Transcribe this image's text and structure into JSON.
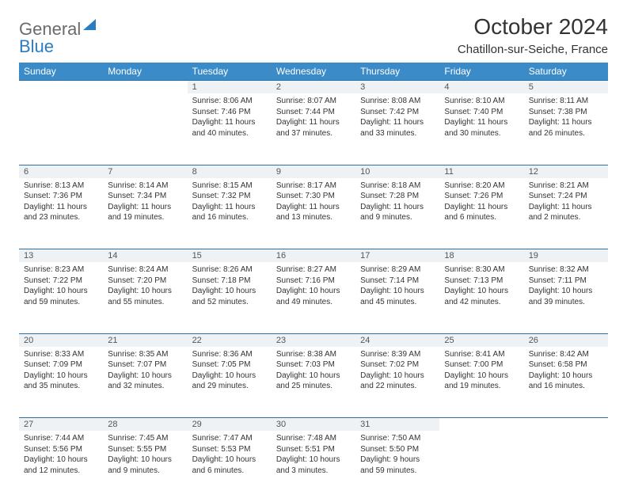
{
  "header": {
    "logo_general": "General",
    "logo_blue": "Blue",
    "month_title": "October 2024",
    "location": "Chatillon-sur-Seiche, France"
  },
  "colors": {
    "header_bg": "#3b8bc8",
    "header_text": "#ffffff",
    "daynum_bg": "#eef2f5",
    "border": "#2b6fa8",
    "logo_gray": "#6b6b6b",
    "logo_blue": "#2b7cc0",
    "body_text": "#333333"
  },
  "daynames": [
    "Sunday",
    "Monday",
    "Tuesday",
    "Wednesday",
    "Thursday",
    "Friday",
    "Saturday"
  ],
  "weeks": [
    {
      "nums": [
        "",
        "",
        "1",
        "2",
        "3",
        "4",
        "5"
      ],
      "cells": [
        {
          "sunrise": "",
          "sunset": "",
          "daylight": ""
        },
        {
          "sunrise": "",
          "sunset": "",
          "daylight": ""
        },
        {
          "sunrise": "Sunrise: 8:06 AM",
          "sunset": "Sunset: 7:46 PM",
          "daylight": "Daylight: 11 hours and 40 minutes."
        },
        {
          "sunrise": "Sunrise: 8:07 AM",
          "sunset": "Sunset: 7:44 PM",
          "daylight": "Daylight: 11 hours and 37 minutes."
        },
        {
          "sunrise": "Sunrise: 8:08 AM",
          "sunset": "Sunset: 7:42 PM",
          "daylight": "Daylight: 11 hours and 33 minutes."
        },
        {
          "sunrise": "Sunrise: 8:10 AM",
          "sunset": "Sunset: 7:40 PM",
          "daylight": "Daylight: 11 hours and 30 minutes."
        },
        {
          "sunrise": "Sunrise: 8:11 AM",
          "sunset": "Sunset: 7:38 PM",
          "daylight": "Daylight: 11 hours and 26 minutes."
        }
      ]
    },
    {
      "nums": [
        "6",
        "7",
        "8",
        "9",
        "10",
        "11",
        "12"
      ],
      "cells": [
        {
          "sunrise": "Sunrise: 8:13 AM",
          "sunset": "Sunset: 7:36 PM",
          "daylight": "Daylight: 11 hours and 23 minutes."
        },
        {
          "sunrise": "Sunrise: 8:14 AM",
          "sunset": "Sunset: 7:34 PM",
          "daylight": "Daylight: 11 hours and 19 minutes."
        },
        {
          "sunrise": "Sunrise: 8:15 AM",
          "sunset": "Sunset: 7:32 PM",
          "daylight": "Daylight: 11 hours and 16 minutes."
        },
        {
          "sunrise": "Sunrise: 8:17 AM",
          "sunset": "Sunset: 7:30 PM",
          "daylight": "Daylight: 11 hours and 13 minutes."
        },
        {
          "sunrise": "Sunrise: 8:18 AM",
          "sunset": "Sunset: 7:28 PM",
          "daylight": "Daylight: 11 hours and 9 minutes."
        },
        {
          "sunrise": "Sunrise: 8:20 AM",
          "sunset": "Sunset: 7:26 PM",
          "daylight": "Daylight: 11 hours and 6 minutes."
        },
        {
          "sunrise": "Sunrise: 8:21 AM",
          "sunset": "Sunset: 7:24 PM",
          "daylight": "Daylight: 11 hours and 2 minutes."
        }
      ]
    },
    {
      "nums": [
        "13",
        "14",
        "15",
        "16",
        "17",
        "18",
        "19"
      ],
      "cells": [
        {
          "sunrise": "Sunrise: 8:23 AM",
          "sunset": "Sunset: 7:22 PM",
          "daylight": "Daylight: 10 hours and 59 minutes."
        },
        {
          "sunrise": "Sunrise: 8:24 AM",
          "sunset": "Sunset: 7:20 PM",
          "daylight": "Daylight: 10 hours and 55 minutes."
        },
        {
          "sunrise": "Sunrise: 8:26 AM",
          "sunset": "Sunset: 7:18 PM",
          "daylight": "Daylight: 10 hours and 52 minutes."
        },
        {
          "sunrise": "Sunrise: 8:27 AM",
          "sunset": "Sunset: 7:16 PM",
          "daylight": "Daylight: 10 hours and 49 minutes."
        },
        {
          "sunrise": "Sunrise: 8:29 AM",
          "sunset": "Sunset: 7:14 PM",
          "daylight": "Daylight: 10 hours and 45 minutes."
        },
        {
          "sunrise": "Sunrise: 8:30 AM",
          "sunset": "Sunset: 7:13 PM",
          "daylight": "Daylight: 10 hours and 42 minutes."
        },
        {
          "sunrise": "Sunrise: 8:32 AM",
          "sunset": "Sunset: 7:11 PM",
          "daylight": "Daylight: 10 hours and 39 minutes."
        }
      ]
    },
    {
      "nums": [
        "20",
        "21",
        "22",
        "23",
        "24",
        "25",
        "26"
      ],
      "cells": [
        {
          "sunrise": "Sunrise: 8:33 AM",
          "sunset": "Sunset: 7:09 PM",
          "daylight": "Daylight: 10 hours and 35 minutes."
        },
        {
          "sunrise": "Sunrise: 8:35 AM",
          "sunset": "Sunset: 7:07 PM",
          "daylight": "Daylight: 10 hours and 32 minutes."
        },
        {
          "sunrise": "Sunrise: 8:36 AM",
          "sunset": "Sunset: 7:05 PM",
          "daylight": "Daylight: 10 hours and 29 minutes."
        },
        {
          "sunrise": "Sunrise: 8:38 AM",
          "sunset": "Sunset: 7:03 PM",
          "daylight": "Daylight: 10 hours and 25 minutes."
        },
        {
          "sunrise": "Sunrise: 8:39 AM",
          "sunset": "Sunset: 7:02 PM",
          "daylight": "Daylight: 10 hours and 22 minutes."
        },
        {
          "sunrise": "Sunrise: 8:41 AM",
          "sunset": "Sunset: 7:00 PM",
          "daylight": "Daylight: 10 hours and 19 minutes."
        },
        {
          "sunrise": "Sunrise: 8:42 AM",
          "sunset": "Sunset: 6:58 PM",
          "daylight": "Daylight: 10 hours and 16 minutes."
        }
      ]
    },
    {
      "nums": [
        "27",
        "28",
        "29",
        "30",
        "31",
        "",
        ""
      ],
      "cells": [
        {
          "sunrise": "Sunrise: 7:44 AM",
          "sunset": "Sunset: 5:56 PM",
          "daylight": "Daylight: 10 hours and 12 minutes."
        },
        {
          "sunrise": "Sunrise: 7:45 AM",
          "sunset": "Sunset: 5:55 PM",
          "daylight": "Daylight: 10 hours and 9 minutes."
        },
        {
          "sunrise": "Sunrise: 7:47 AM",
          "sunset": "Sunset: 5:53 PM",
          "daylight": "Daylight: 10 hours and 6 minutes."
        },
        {
          "sunrise": "Sunrise: 7:48 AM",
          "sunset": "Sunset: 5:51 PM",
          "daylight": "Daylight: 10 hours and 3 minutes."
        },
        {
          "sunrise": "Sunrise: 7:50 AM",
          "sunset": "Sunset: 5:50 PM",
          "daylight": "Daylight: 9 hours and 59 minutes."
        },
        {
          "sunrise": "",
          "sunset": "",
          "daylight": ""
        },
        {
          "sunrise": "",
          "sunset": "",
          "daylight": ""
        }
      ]
    }
  ]
}
